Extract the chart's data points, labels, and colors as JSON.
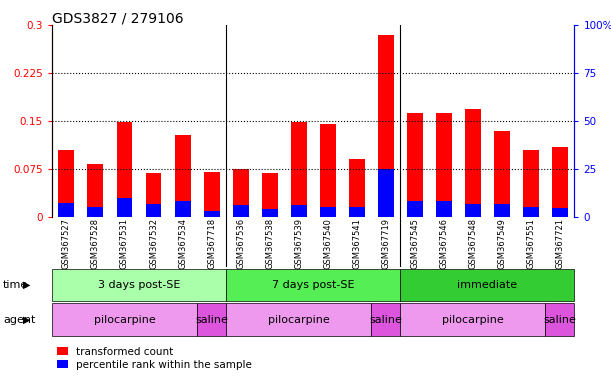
{
  "title": "GDS3827 / 279106",
  "samples": [
    "GSM367527",
    "GSM367528",
    "GSM367531",
    "GSM367532",
    "GSM367534",
    "GSM367718",
    "GSM367536",
    "GSM367538",
    "GSM367539",
    "GSM367540",
    "GSM367541",
    "GSM367719",
    "GSM367545",
    "GSM367546",
    "GSM367548",
    "GSM367549",
    "GSM367551",
    "GSM367721"
  ],
  "transformed_count": [
    0.105,
    0.082,
    0.148,
    0.068,
    0.128,
    0.07,
    0.075,
    0.068,
    0.148,
    0.145,
    0.09,
    0.285,
    0.162,
    0.163,
    0.168,
    0.135,
    0.105,
    0.11
  ],
  "percentile_rank": [
    0.022,
    0.015,
    0.03,
    0.02,
    0.025,
    0.01,
    0.018,
    0.012,
    0.018,
    0.016,
    0.016,
    0.075,
    0.025,
    0.025,
    0.02,
    0.02,
    0.015,
    0.014
  ],
  "red_color": "#FF0000",
  "blue_color": "#0000FF",
  "ylim_left": [
    0,
    0.3
  ],
  "ylim_right": [
    0,
    100
  ],
  "yticks_left": [
    0,
    0.075,
    0.15,
    0.225,
    0.3
  ],
  "yticks_right": [
    0,
    25,
    50,
    75,
    100
  ],
  "hlines": [
    0.075,
    0.15,
    0.225
  ],
  "time_groups": [
    {
      "label": "3 days post-SE",
      "start": 0,
      "end": 5,
      "color": "#AAFFAA"
    },
    {
      "label": "7 days post-SE",
      "start": 6,
      "end": 11,
      "color": "#55EE55"
    },
    {
      "label": "immediate",
      "start": 12,
      "end": 17,
      "color": "#33CC33"
    }
  ],
  "agent_groups": [
    {
      "label": "pilocarpine",
      "start": 0,
      "end": 4,
      "color": "#EE99EE"
    },
    {
      "label": "saline",
      "start": 5,
      "end": 5,
      "color": "#DD55DD"
    },
    {
      "label": "pilocarpine",
      "start": 6,
      "end": 10,
      "color": "#EE99EE"
    },
    {
      "label": "saline",
      "start": 11,
      "end": 11,
      "color": "#DD55DD"
    },
    {
      "label": "pilocarpine",
      "start": 12,
      "end": 16,
      "color": "#EE99EE"
    },
    {
      "label": "saline",
      "start": 17,
      "end": 17,
      "color": "#DD55DD"
    }
  ],
  "bar_width": 0.55,
  "tick_label_color_left": "#FF0000",
  "tick_label_color_right": "#0000FF",
  "title_fontsize": 10,
  "axis_fontsize": 7.5,
  "label_fontsize": 8,
  "xtick_fontsize": 6,
  "legend_fontsize": 7.5,
  "group_boundaries": [
    5.5,
    11.5
  ]
}
